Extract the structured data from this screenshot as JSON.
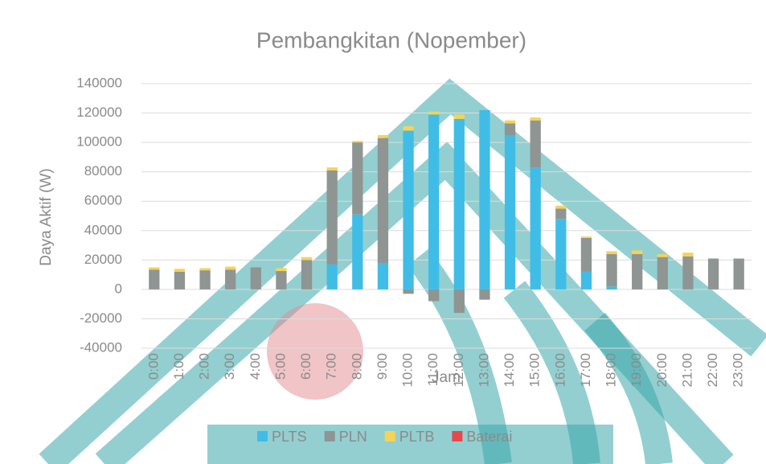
{
  "chart_data": {
    "type": "stacked_bar",
    "title": "Pembangkitan (Nopember)",
    "x_label": "Jam",
    "y_label": "Daya Aktif (W)",
    "categories": [
      "0:00",
      "1:00",
      "2:00",
      "3:00",
      "4:00",
      "5:00",
      "6:00",
      "7:00",
      "8:00",
      "9:00",
      "10:00",
      "11:00",
      "12:00",
      "13:00",
      "14:00",
      "15:00",
      "16:00",
      "17:00",
      "18:00",
      "19:00",
      "20:00",
      "21:00",
      "22:00",
      "23:00"
    ],
    "series": [
      {
        "name": "PLTS",
        "color": "#3fbde6",
        "values": [
          0,
          0,
          0,
          0,
          0,
          0,
          0,
          17000,
          51000,
          18000,
          108000,
          119000,
          116000,
          122000,
          105000,
          83000,
          48000,
          12000,
          2000,
          0,
          0,
          0,
          0,
          0
        ]
      },
      {
        "name": "PLN",
        "color": "#8f9592",
        "values": [
          13500,
          12000,
          13000,
          13500,
          15000,
          12500,
          20000,
          64000,
          49000,
          85000,
          -3000,
          -8000,
          -16000,
          -7000,
          8000,
          32000,
          7000,
          23000,
          22000,
          24000,
          22000,
          22500,
          21000,
          21000
        ]
      },
      {
        "name": "PLTB",
        "color": "#f7d354",
        "values": [
          1500,
          2000,
          1500,
          2000,
          0,
          2000,
          2000,
          2000,
          1000,
          2000,
          3000,
          2000,
          3000,
          0,
          2000,
          2000,
          2000,
          1000,
          2000,
          2500,
          2000,
          2500,
          0,
          0
        ]
      },
      {
        "name": "Baterai",
        "color": "#e8474c",
        "values": [
          0,
          0,
          0,
          0,
          0,
          0,
          0,
          0,
          0,
          0,
          0,
          0,
          0,
          0,
          0,
          0,
          0,
          0,
          0,
          0,
          0,
          0,
          0,
          0
        ]
      }
    ],
    "ylim": [
      -40000,
      140000
    ],
    "yticks": [
      -40000,
      -20000,
      0,
      20000,
      40000,
      60000,
      80000,
      100000,
      120000,
      140000
    ],
    "grid": true,
    "legend": "bottom"
  }
}
